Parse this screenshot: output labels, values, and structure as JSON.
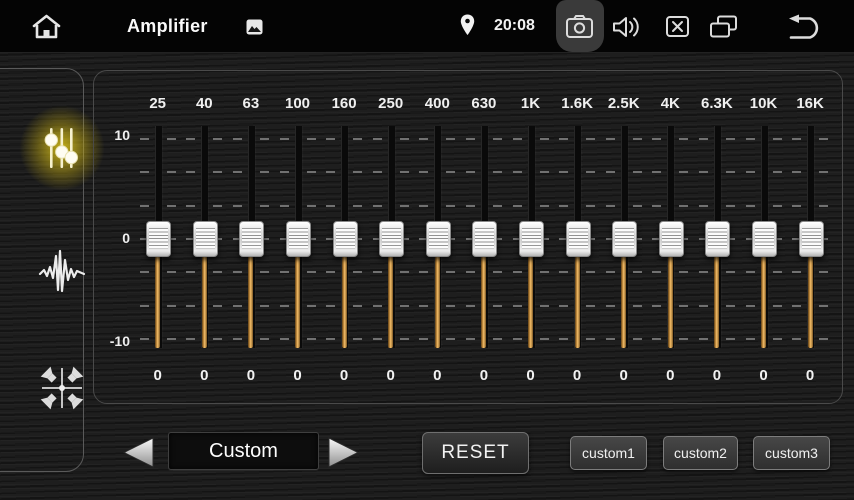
{
  "topbar": {
    "title": "Amplifier",
    "time": "20:08",
    "icon_names": [
      "home-icon",
      "gallery-icon",
      "location-pin-icon",
      "camera-icon",
      "volume-icon",
      "close-app-icon",
      "recent-apps-icon",
      "back-icon"
    ]
  },
  "sidebar": {
    "items": [
      {
        "id": "equalizer",
        "icon": "eq-sliders-icon",
        "active": true
      },
      {
        "id": "sound-effect",
        "icon": "waveform-icon",
        "active": false
      },
      {
        "id": "balance-fader",
        "icon": "speaker-balance-icon",
        "active": false
      }
    ]
  },
  "equalizer": {
    "axis_labels": [
      "10",
      "0",
      "-10"
    ],
    "range": [
      -10,
      10
    ],
    "bands": [
      {
        "freq": "25",
        "value": "0"
      },
      {
        "freq": "40",
        "value": "0"
      },
      {
        "freq": "63",
        "value": "0"
      },
      {
        "freq": "100",
        "value": "0"
      },
      {
        "freq": "160",
        "value": "0"
      },
      {
        "freq": "250",
        "value": "0"
      },
      {
        "freq": "400",
        "value": "0"
      },
      {
        "freq": "630",
        "value": "0"
      },
      {
        "freq": "1K",
        "value": "0"
      },
      {
        "freq": "1.6K",
        "value": "0"
      },
      {
        "freq": "2.5K",
        "value": "0"
      },
      {
        "freq": "4K",
        "value": "0"
      },
      {
        "freq": "6.3K",
        "value": "0"
      },
      {
        "freq": "10K",
        "value": "0"
      },
      {
        "freq": "16K",
        "value": "0"
      }
    ]
  },
  "footer": {
    "preset": "Custom",
    "reset_label": "RESET",
    "custom_labels": [
      "custom1",
      "custom2",
      "custom3"
    ],
    "nav_icons": [
      "arrow-left-icon",
      "arrow-right-icon"
    ]
  },
  "colors": {
    "accent_track_gold": "#d99e48",
    "active_glow_yellow": "#dcc81c",
    "knob_silver": "#e0e0e0",
    "panel_border": "#4a4a4a"
  }
}
